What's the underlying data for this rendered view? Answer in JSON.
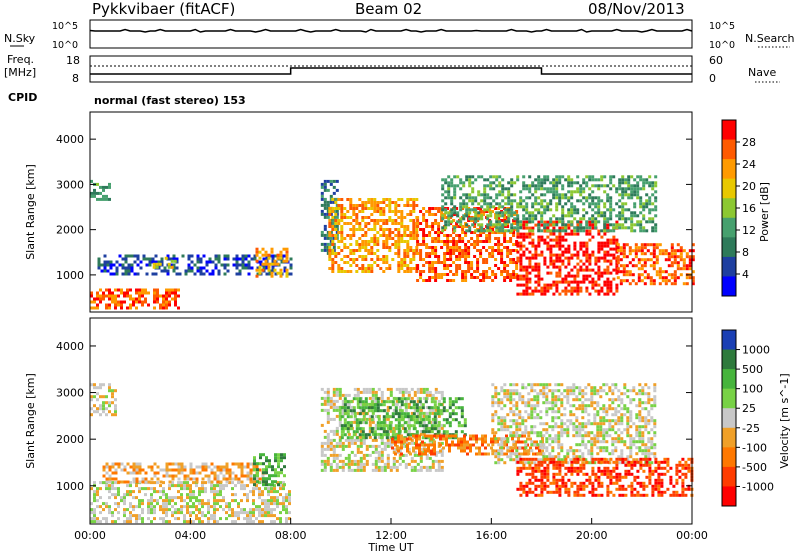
{
  "header": {
    "station": "Pykkvibaer (fitACF)",
    "beam": "Beam 02",
    "date": "08/Nov/2013"
  },
  "noise_panel": {
    "left_label": "N.Sky",
    "right_label": "N.Search",
    "left_ticks": [
      "10^5",
      "10^0"
    ],
    "right_ticks": [
      "10^5",
      "10^0"
    ]
  },
  "freq_panel": {
    "left_label_line1": "Freq.",
    "left_label_line2": "[MHz]",
    "right_label": "Nave",
    "left_ticks": [
      "18",
      "8"
    ],
    "right_ticks": [
      "60",
      "0"
    ],
    "cpid_label": "CPID",
    "cpid_text": "normal (fast stereo) 153"
  },
  "chart_data": [
    {
      "type": "heatmap",
      "name": "power",
      "ylabel": "Slant Range [km]",
      "ylim": [
        180,
        4600
      ],
      "yticks": [
        1000,
        2000,
        3000,
        4000
      ],
      "xlim_hours": [
        0,
        24
      ],
      "colorbar": {
        "label": "Power [dB]",
        "ticks": [
          "28",
          "24",
          "20",
          "16",
          "12",
          "8",
          "4"
        ],
        "colors": [
          "#ff0000",
          "#ff5a00",
          "#ff9a00",
          "#e8c800",
          "#8cc832",
          "#46a06e",
          "#2e7a5a",
          "#1e3fa0",
          "#0000ff"
        ]
      },
      "regions": [
        {
          "t0": 0.0,
          "t1": 0.8,
          "r0": 2700,
          "r1": 3100,
          "level": 3
        },
        {
          "t0": 0.3,
          "t1": 8.0,
          "r0": 1000,
          "r1": 1450,
          "level": 1
        },
        {
          "t0": 0.0,
          "t1": 3.5,
          "r0": 250,
          "r1": 700,
          "level": 7
        },
        {
          "t0": 2.5,
          "t1": 3.5,
          "r0": 1200,
          "r1": 1400,
          "level": 5
        },
        {
          "t0": 6.6,
          "t1": 7.8,
          "r0": 950,
          "r1": 1600,
          "level": 6
        },
        {
          "t0": 9.2,
          "t1": 9.8,
          "r0": 1500,
          "r1": 3100,
          "level": 2
        },
        {
          "t0": 9.5,
          "t1": 13.0,
          "r0": 1100,
          "r1": 2700,
          "level": 6
        },
        {
          "t0": 13.0,
          "t1": 17.0,
          "r0": 900,
          "r1": 2500,
          "level": 7
        },
        {
          "t0": 17.0,
          "t1": 21.0,
          "r0": 600,
          "r1": 2200,
          "level": 8
        },
        {
          "t0": 21.0,
          "t1": 24.0,
          "r0": 800,
          "r1": 1700,
          "level": 7
        },
        {
          "t0": 14.0,
          "t1": 22.5,
          "r0": 2000,
          "r1": 3200,
          "level": 3
        }
      ]
    },
    {
      "type": "heatmap",
      "name": "velocity",
      "ylabel": "Slant Range [km]",
      "ylim": [
        180,
        4600
      ],
      "yticks": [
        1000,
        2000,
        3000,
        4000
      ],
      "xlim_hours": [
        0,
        24
      ],
      "xticks": [
        "00:00",
        "04:00",
        "08:00",
        "12:00",
        "16:00",
        "20:00",
        "00:00"
      ],
      "xlabel": "Time UT",
      "colorbar": {
        "label": "Velocity [m s^-1]",
        "ticks": [
          "1000",
          "500",
          "100",
          "25",
          "-25",
          "-100",
          "-500",
          "-1000"
        ],
        "colors": [
          "#1a3fb4",
          "#2e7a3c",
          "#46b43c",
          "#78d246",
          "#c8c8c8",
          "#f0a028",
          "#ff7800",
          "#ff3c00",
          "#ff0000"
        ]
      },
      "regions": [
        {
          "t0": 0.0,
          "t1": 1.0,
          "r0": 2500,
          "r1": 3200,
          "level": 4
        },
        {
          "t0": 0.0,
          "t1": 8.0,
          "r0": 250,
          "r1": 1100,
          "level": 4
        },
        {
          "t0": 0.5,
          "t1": 7.0,
          "r0": 1100,
          "r1": 1500,
          "level": 3
        },
        {
          "t0": 6.5,
          "t1": 7.8,
          "r0": 1000,
          "r1": 1700,
          "level": 6
        },
        {
          "t0": 9.2,
          "t1": 14.0,
          "r0": 1300,
          "r1": 3100,
          "level": 4
        },
        {
          "t0": 10.0,
          "t1": 15.0,
          "r0": 2000,
          "r1": 2900,
          "level": 6
        },
        {
          "t0": 12.0,
          "t1": 18.0,
          "r0": 1700,
          "r1": 2100,
          "level": 2
        },
        {
          "t0": 16.0,
          "t1": 22.5,
          "r0": 1500,
          "r1": 3200,
          "level": 4
        },
        {
          "t0": 17.0,
          "t1": 24.0,
          "r0": 800,
          "r1": 1600,
          "level": 1
        }
      ]
    }
  ],
  "time_axis": {
    "xticks": [
      "00:00",
      "04:00",
      "08:00",
      "12:00",
      "16:00",
      "20:00",
      "00:00"
    ],
    "xlabel": "Time UT"
  }
}
